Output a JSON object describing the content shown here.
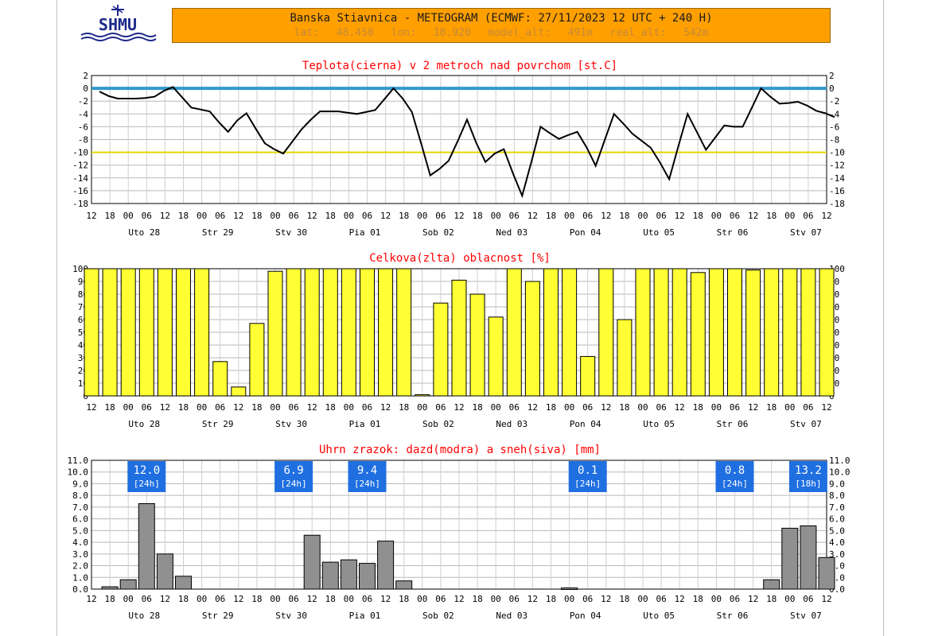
{
  "header": {
    "title": "Banska Stiavnica - METEOGRAM (ECMWF: 27/11/2023 12 UTC + 240 H)",
    "coords": "lat: 48.450  lon: 18.920  model_alt: 491m  real_alt: 542m"
  },
  "logo": {
    "text": "SHMU"
  },
  "colors": {
    "cloud": "#ffff33",
    "precip": "#909090",
    "zero_line": "#3399cc",
    "minus10_line": "#e0d800",
    "title_red": "#ff0000",
    "badge": "#1f6fe0"
  },
  "x_axis": {
    "hour_labels": [
      "12",
      "18",
      "00",
      "06",
      "12",
      "18",
      "00",
      "06",
      "12",
      "18",
      "00",
      "06",
      "12",
      "18",
      "00",
      "06",
      "12",
      "18",
      "00",
      "06",
      "12",
      "18",
      "00",
      "06",
      "12",
      "18",
      "00",
      "06",
      "12",
      "18",
      "00",
      "06",
      "12",
      "18",
      "00",
      "06",
      "12",
      "18",
      "00",
      "06",
      "12"
    ],
    "day_labels": [
      "Uto 28",
      "Str 29",
      "Stv 30",
      "Pia 01",
      "Sob 02",
      "Ned 03",
      "Pon 04",
      "Uto 05",
      "Str 06",
      "Stv 07"
    ]
  },
  "chart_data": [
    {
      "id": "temperature",
      "type": "line",
      "title": "Teplota(cierna) v 2 metroch nad povrchom [st.C]",
      "ylim": [
        -18,
        2
      ],
      "yticks": [
        "2",
        "0",
        "-2",
        "-4",
        "-6",
        "-8",
        "-10",
        "-12",
        "-14",
        "-16",
        "-18"
      ],
      "reference_lines": [
        0,
        -10
      ],
      "grid": true,
      "x": [
        0,
        3,
        6,
        9,
        12,
        15,
        18,
        21,
        24,
        27,
        30,
        33,
        36,
        39,
        42,
        45,
        48,
        51,
        54,
        57,
        60,
        63,
        66,
        69,
        72,
        75,
        78,
        81,
        84,
        87,
        90,
        93,
        96,
        99,
        102,
        105,
        108,
        111,
        114,
        117,
        120,
        123,
        126,
        129,
        132,
        135,
        138,
        141,
        144,
        147,
        150,
        153,
        156,
        159,
        162,
        165,
        168,
        171,
        174,
        177,
        180,
        183,
        186,
        189,
        192,
        195,
        198,
        201,
        204,
        207,
        210,
        213,
        216,
        219,
        222,
        225,
        228,
        231,
        234,
        237,
        240
      ],
      "values": [
        -0.5,
        -1.2,
        -1.6,
        -1.6,
        -1.6,
        -1.5,
        -1.3,
        -0.4,
        0.2,
        -1.4,
        -3.0,
        -3.3,
        -3.6,
        -5.3,
        -6.8,
        -5.0,
        -3.9,
        -6.3,
        -8.6,
        -9.5,
        -10.2,
        -8.3,
        -6.4,
        -4.9,
        -3.6,
        -3.6,
        -3.6,
        -3.8,
        -4.0,
        -3.7,
        -3.4,
        -1.7,
        0.0,
        -1.6,
        -3.7,
        -8.6,
        -13.6,
        -12.6,
        -11.3,
        -8.2,
        -4.9,
        -8.5,
        -11.5,
        -10.2,
        -9.5,
        -13.3,
        -16.8,
        -11.5,
        -6.0,
        -7.0,
        -7.9,
        -7.3,
        -6.8,
        -9.2,
        -12.1,
        -8.0,
        -4.0,
        -5.5,
        -7.1,
        -8.2,
        -9.3,
        -11.6,
        -14.2,
        -9.0,
        -4.0,
        -6.8,
        -9.6,
        -7.7,
        -5.8,
        -6.0,
        -6.0,
        -3.0,
        0.0,
        -1.3,
        -2.4,
        -2.3,
        -2.1,
        -2.7,
        -3.5,
        -3.9,
        -4.5
      ]
    },
    {
      "id": "cloudiness",
      "type": "bar",
      "title": "Celkova(zlta) oblacnost [%]",
      "ylim": [
        0,
        100
      ],
      "yticks": [
        "100",
        "90",
        "80",
        "70",
        "60",
        "50",
        "40",
        "30",
        "20",
        "10",
        "0"
      ],
      "grid": true,
      "values": [
        100,
        100,
        100,
        100,
        100,
        100,
        100,
        27,
        7,
        57,
        98,
        100,
        100,
        100,
        100,
        100,
        100,
        100,
        1,
        73,
        91,
        80,
        62,
        100,
        90,
        100,
        100,
        31,
        100,
        60,
        100,
        100,
        100,
        97,
        100,
        100,
        99,
        100,
        100,
        100,
        100
      ]
    },
    {
      "id": "precipitation",
      "type": "bar",
      "title": "Uhrn zrazok: dazd(modra) a sneh(siva) [mm]",
      "ylim": [
        0,
        11
      ],
      "yticks": [
        "11.0",
        "10.0",
        "9.0",
        "8.0",
        "7.0",
        "6.0",
        "5.0",
        "4.0",
        "3.0",
        "2.0",
        "1.0",
        "0.0"
      ],
      "grid": true,
      "values": [
        0,
        0.2,
        0.8,
        7.3,
        3.0,
        1.1,
        0,
        0,
        0,
        0,
        0,
        0,
        4.6,
        2.3,
        2.5,
        2.2,
        4.1,
        0.7,
        0,
        0,
        0,
        0,
        0,
        0,
        0,
        0,
        0.1,
        0,
        0,
        0,
        0,
        0,
        0,
        0,
        0,
        0,
        0,
        0.8,
        5.2,
        5.4,
        2.7
      ],
      "totals": [
        {
          "value": "12.0",
          "period": "[24h]",
          "index": 3
        },
        {
          "value": "6.9",
          "period": "[24h]",
          "index": 11
        },
        {
          "value": "9.4",
          "period": "[24h]",
          "index": 15
        },
        {
          "value": "0.1",
          "period": "[24h]",
          "index": 27
        },
        {
          "value": "0.8",
          "period": "[24h]",
          "index": 35
        },
        {
          "value": "13.2",
          "period": "[18h]",
          "index": 39
        }
      ]
    }
  ]
}
